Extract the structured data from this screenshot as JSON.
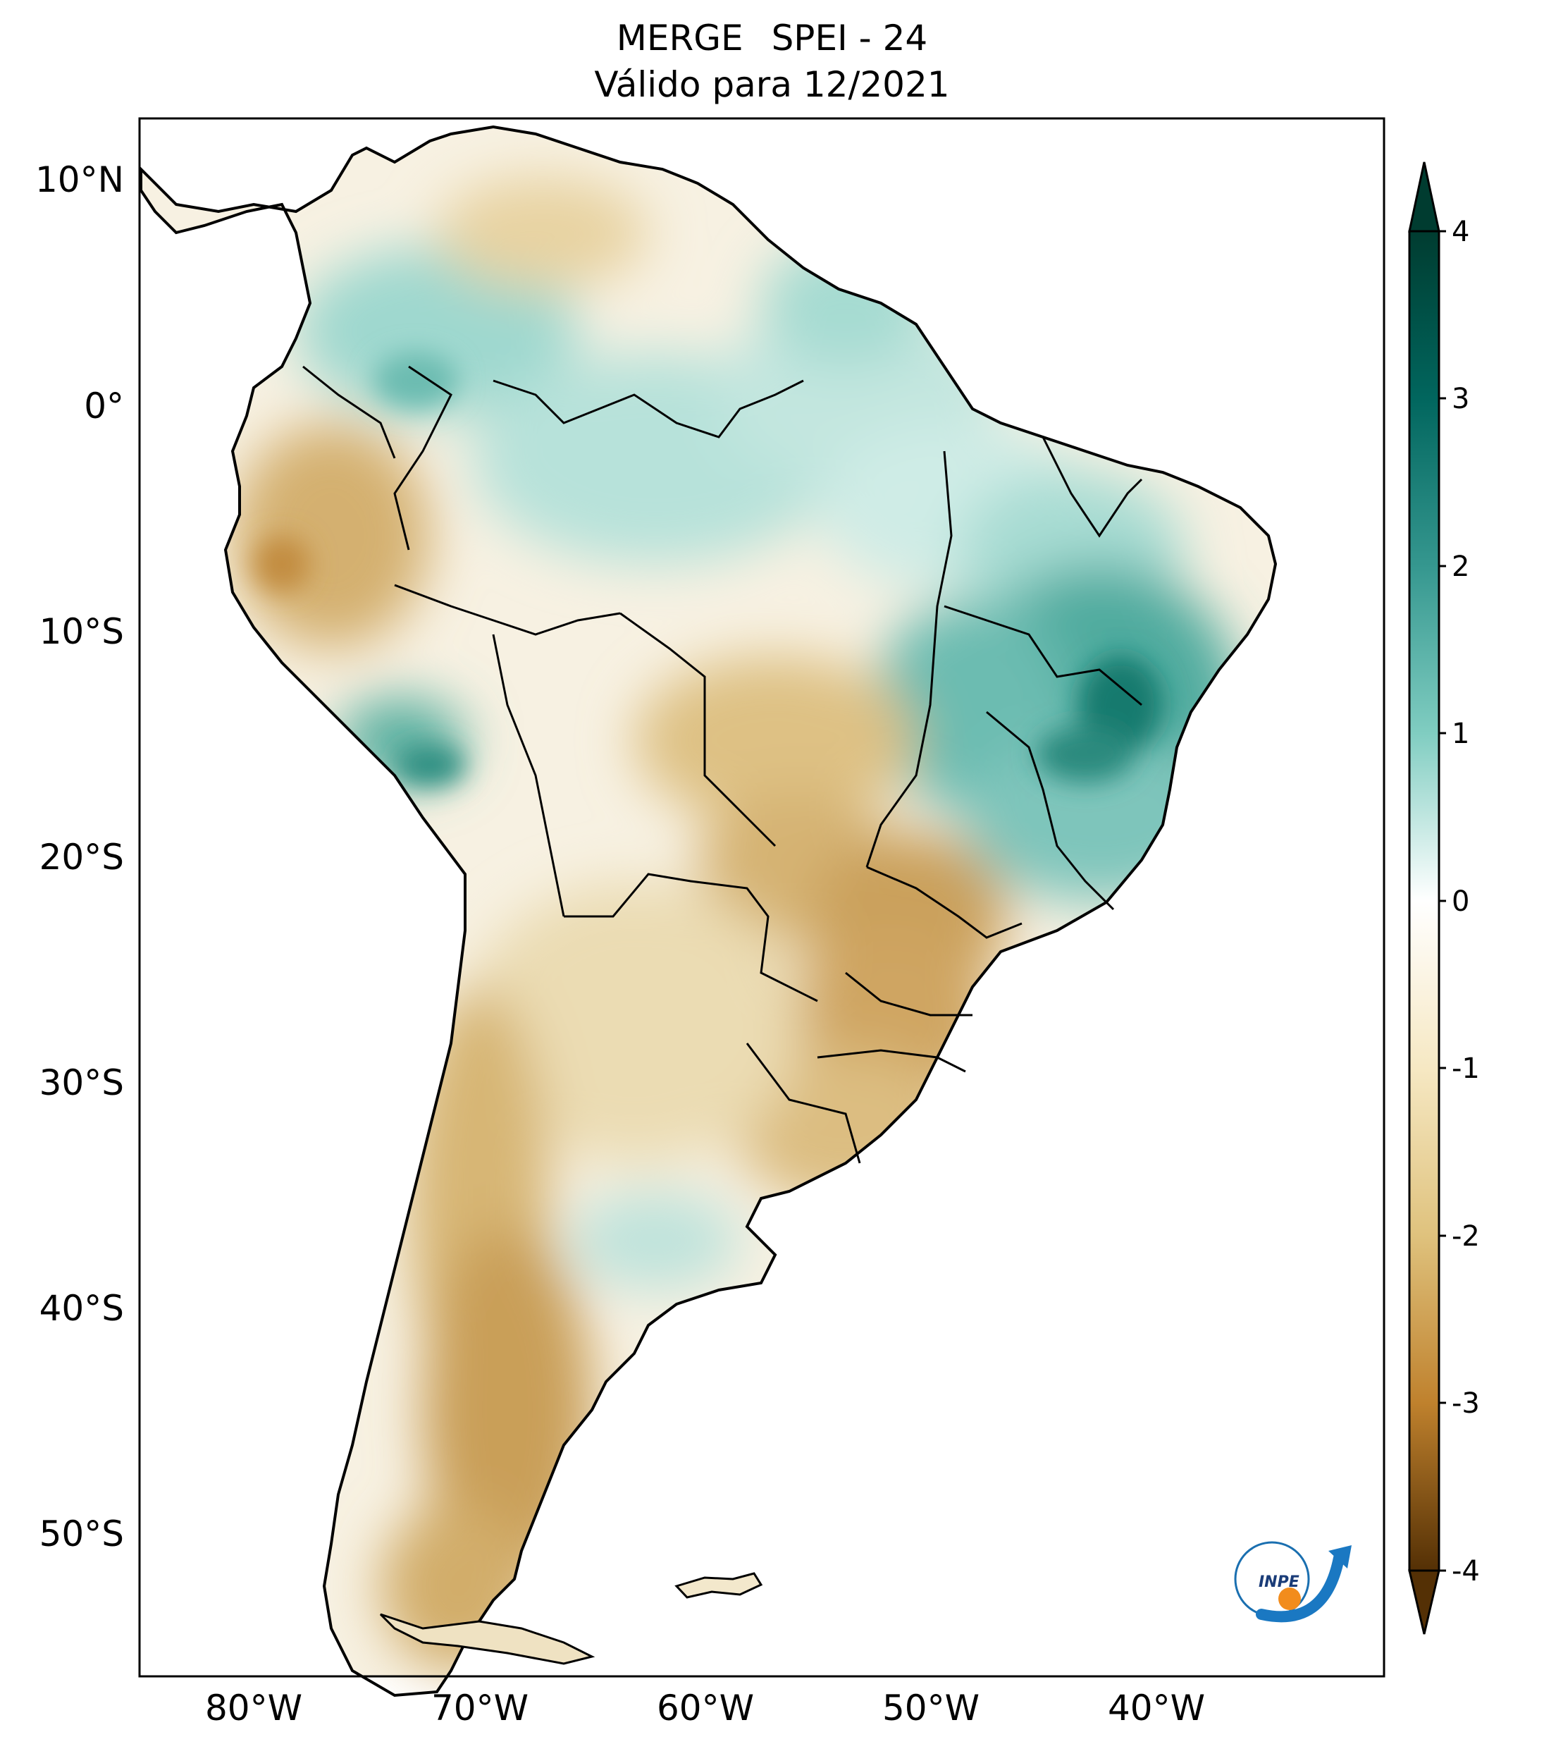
{
  "title": {
    "line1_left": "MERGE",
    "line1_right": "SPEI - 24",
    "line2": "Válido para 12/2021"
  },
  "axes": {
    "lat_labels": [
      "10°N",
      "0°",
      "10°S",
      "20°S",
      "30°S",
      "40°S",
      "50°S"
    ],
    "lon_labels": [
      "80°W",
      "70°W",
      "60°W",
      "50°W",
      "40°W"
    ]
  },
  "colorbar": {
    "ticks": [
      "4",
      "3",
      "2",
      "1",
      "0",
      "-1",
      "-2",
      "-3",
      "-4"
    ],
    "extend": "both",
    "colors": {
      "p4": "#003c30",
      "p3": "#01665e",
      "p2": "#35978f",
      "p1": "#80cdc1",
      "zero": "#ffffff",
      "m1": "#f6e8c3",
      "m2": "#dfc27d",
      "m3": "#bf812d",
      "m4": "#543005"
    }
  },
  "logo": {
    "text": "INPE"
  }
}
